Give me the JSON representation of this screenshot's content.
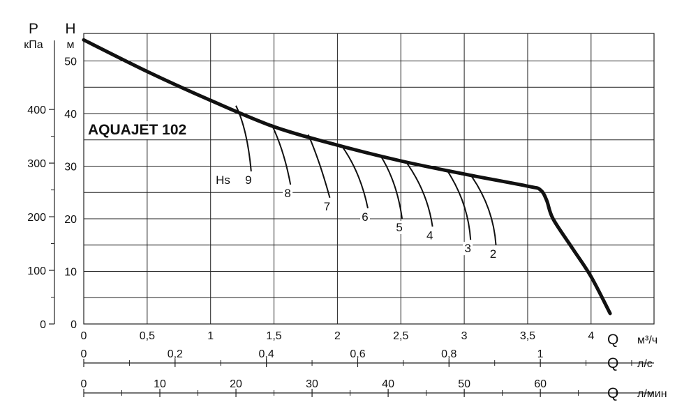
{
  "chart_data": {
    "type": "line",
    "title": "AQUAJET 102",
    "left_axes": {
      "p": {
        "letter": "P",
        "unit": "кПа",
        "ticks": [
          "0",
          "100",
          "200",
          "300",
          "400"
        ]
      },
      "h": {
        "letter": "H",
        "unit": "м",
        "ticks": [
          "0",
          "10",
          "20",
          "30",
          "40",
          "50"
        ]
      }
    },
    "bottom_axes": {
      "m3h": {
        "letter": "Q",
        "unit": "м³/ч",
        "ticks": [
          "0",
          "0,5",
          "1",
          "1,5",
          "2",
          "2,5",
          "3",
          "3,5",
          "4"
        ]
      },
      "ls": {
        "letter": "Q",
        "unit": "л/с",
        "ticks": [
          "0",
          "0,2",
          "0,4",
          "0,6",
          "0,8",
          "1"
        ]
      },
      "lmin": {
        "letter": "Q",
        "unit": "л/мин",
        "ticks": [
          "0",
          "10",
          "20",
          "30",
          "40",
          "50",
          "60"
        ]
      }
    },
    "xlim_m3h": [
      0,
      4.5
    ],
    "ylim_h_m": [
      0,
      53
    ],
    "grid": true,
    "main_curve": {
      "x": [
        0,
        0.5,
        1.0,
        1.5,
        2.0,
        2.5,
        3.0,
        3.5,
        3.6,
        3.65,
        3.7,
        3.85,
        4.0,
        4.15
      ],
      "y": [
        54,
        48,
        42.5,
        37.5,
        34,
        31,
        28.5,
        26.2,
        25.5,
        23.5,
        20,
        14.5,
        9,
        2
      ]
    },
    "hs_label": "Hs",
    "hs_curves": [
      {
        "label": "9",
        "x": [
          1.2,
          1.29,
          1.32
        ],
        "y": [
          41.5,
          37,
          29
        ]
      },
      {
        "label": "8",
        "x": [
          1.48,
          1.58,
          1.63
        ],
        "y": [
          38,
          33,
          26.5
        ]
      },
      {
        "label": "7",
        "x": [
          1.77,
          1.86,
          1.94
        ],
        "y": [
          36,
          31,
          24
        ]
      },
      {
        "label": "6",
        "x": [
          2.03,
          2.18,
          2.24
        ],
        "y": [
          34,
          29,
          22
        ]
      },
      {
        "label": "5",
        "x": [
          2.34,
          2.47,
          2.51
        ],
        "y": [
          32,
          27,
          20
        ]
      },
      {
        "label": "4",
        "x": [
          2.55,
          2.71,
          2.75
        ],
        "y": [
          30.5,
          25,
          18.5
        ]
      },
      {
        "label": "3",
        "x": [
          2.87,
          3.03,
          3.05
        ],
        "y": [
          29,
          23,
          16
        ]
      },
      {
        "label": "2",
        "x": [
          3.06,
          3.23,
          3.25
        ],
        "y": [
          28,
          22,
          15
        ]
      }
    ]
  }
}
